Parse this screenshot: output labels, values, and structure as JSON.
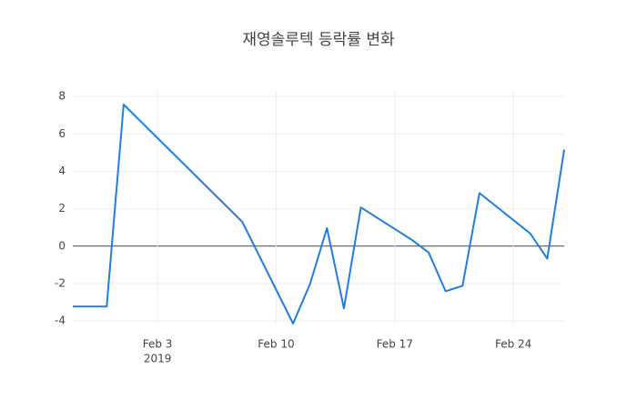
{
  "chart_data": {
    "type": "line",
    "title": "재영솔루텍 등락률 변화",
    "x": [
      "2019-01-29",
      "2019-01-31",
      "2019-02-01",
      "2019-02-08",
      "2019-02-11",
      "2019-02-12",
      "2019-02-13",
      "2019-02-14",
      "2019-02-15",
      "2019-02-18",
      "2019-02-19",
      "2019-02-20",
      "2019-02-21",
      "2019-02-22",
      "2019-02-25",
      "2019-02-26",
      "2019-02-27"
    ],
    "series": [
      {
        "color": "#1f7ee0",
        "values": [
          -3.23,
          -3.23,
          7.57,
          1.3,
          -4.14,
          -2.02,
          0.96,
          -3.33,
          2.07,
          0.34,
          -0.34,
          -2.41,
          -2.12,
          2.84,
          0.67,
          -0.67,
          5.16
        ]
      }
    ],
    "xlim": [
      "2019-01-29",
      "2019-02-27"
    ],
    "xticks": [
      {
        "value": "2019-02-03",
        "label": "Feb 3"
      },
      {
        "value": "2019-02-10",
        "label": "Feb 10"
      },
      {
        "value": "2019-02-17",
        "label": "Feb 17"
      },
      {
        "value": "2019-02-24",
        "label": "Feb 24"
      }
    ],
    "x_year_label": "2019",
    "ylim": [
      -4.14,
      8.3
    ],
    "yticks": [
      -4,
      -2,
      0,
      2,
      4,
      6,
      8
    ],
    "grid": true
  }
}
